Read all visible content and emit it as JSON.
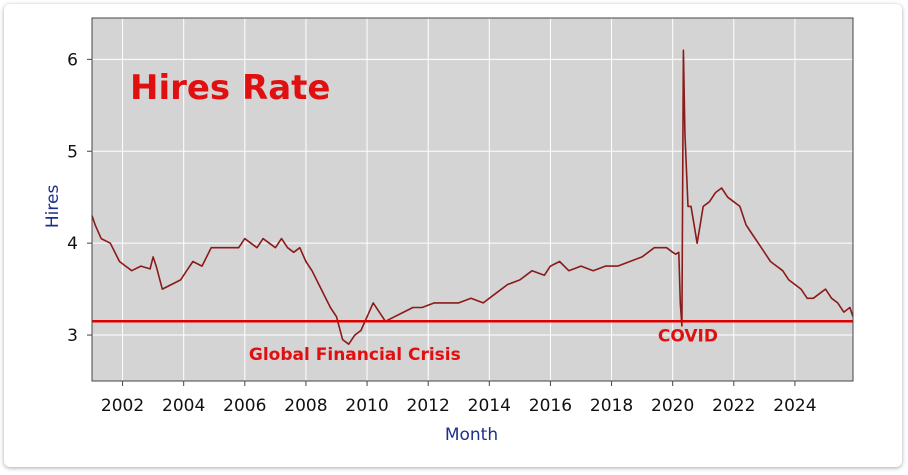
{
  "chart_data": {
    "type": "line",
    "title": "Hires Rate",
    "xlabel": "Month",
    "ylabel": "Hires",
    "xlim": [
      2001.0,
      2025.9
    ],
    "ylim": [
      2.5,
      6.45
    ],
    "x_ticks": [
      2002,
      2004,
      2006,
      2008,
      2010,
      2012,
      2014,
      2016,
      2018,
      2020,
      2022,
      2024
    ],
    "x_tick_labels": [
      "2002",
      "2004",
      "2006",
      "2008",
      "2010",
      "2012",
      "2014",
      "2016",
      "2018",
      "2020",
      "2022",
      "2024"
    ],
    "y_ticks": [
      3,
      4,
      5,
      6
    ],
    "y_tick_labels": [
      "3",
      "4",
      "5",
      "6"
    ],
    "grid": true,
    "colors": {
      "line": "#8b1a1a",
      "reference_line": "#e00000",
      "plot_bg": "#d4d4d4",
      "title": "#e01010",
      "axis_label": "#1d2f8c"
    },
    "reference_line": {
      "y": 3.15
    },
    "annotations": [
      {
        "text": "Global Financial Crisis",
        "x": 2009.6,
        "y": 2.73
      },
      {
        "text": "COVID",
        "x": 2020.5,
        "y": 2.93
      }
    ],
    "series": [
      {
        "x": [
          2001.0,
          2001.1,
          2001.3,
          2001.6,
          2001.9,
          2002.1,
          2002.3,
          2002.6,
          2002.9,
          2003.0,
          2003.1,
          2003.3,
          2003.6,
          2003.9,
          2004.1,
          2004.3,
          2004.6,
          2004.9,
          2005.2,
          2005.5,
          2005.8,
          2006.0,
          2006.2,
          2006.4,
          2006.6,
          2006.8,
          2007.0,
          2007.2,
          2007.4,
          2007.6,
          2007.8,
          2008.0,
          2008.2,
          2008.5,
          2008.8,
          2009.0,
          2009.2,
          2009.4,
          2009.6,
          2009.8,
          2010.0,
          2010.2,
          2010.4,
          2010.6,
          2010.9,
          2011.2,
          2011.5,
          2011.8,
          2012.2,
          2012.6,
          2013.0,
          2013.4,
          2013.8,
          2014.2,
          2014.6,
          2015.0,
          2015.4,
          2015.8,
          2016.0,
          2016.3,
          2016.6,
          2017.0,
          2017.4,
          2017.8,
          2018.2,
          2018.6,
          2019.0,
          2019.4,
          2019.8,
          2020.0,
          2020.1,
          2020.2,
          2020.25,
          2020.3,
          2020.35,
          2020.4,
          2020.5,
          2020.6,
          2020.7,
          2020.8,
          2020.9,
          2021.0,
          2021.2,
          2021.4,
          2021.6,
          2021.8,
          2022.0,
          2022.2,
          2022.4,
          2022.6,
          2022.8,
          2023.0,
          2023.2,
          2023.4,
          2023.6,
          2023.8,
          2024.0,
          2024.2,
          2024.4,
          2024.6,
          2024.8,
          2025.0,
          2025.2,
          2025.4,
          2025.6,
          2025.8,
          2025.9
        ],
        "values": [
          4.3,
          4.2,
          4.05,
          4.0,
          3.8,
          3.75,
          3.7,
          3.75,
          3.72,
          3.85,
          3.75,
          3.5,
          3.55,
          3.6,
          3.7,
          3.8,
          3.75,
          3.95,
          3.95,
          3.95,
          3.95,
          4.05,
          4.0,
          3.95,
          4.05,
          4.0,
          3.95,
          4.05,
          3.95,
          3.9,
          3.95,
          3.8,
          3.7,
          3.5,
          3.3,
          3.2,
          2.95,
          2.9,
          3.0,
          3.05,
          3.2,
          3.35,
          3.25,
          3.15,
          3.2,
          3.25,
          3.3,
          3.3,
          3.35,
          3.35,
          3.35,
          3.4,
          3.35,
          3.45,
          3.55,
          3.6,
          3.7,
          3.65,
          3.75,
          3.8,
          3.7,
          3.75,
          3.7,
          3.75,
          3.75,
          3.8,
          3.85,
          3.95,
          3.95,
          3.9,
          3.88,
          3.9,
          3.35,
          3.1,
          6.1,
          5.2,
          4.4,
          4.4,
          4.2,
          4.0,
          4.2,
          4.4,
          4.45,
          4.55,
          4.6,
          4.5,
          4.45,
          4.4,
          4.2,
          4.1,
          4.0,
          3.9,
          3.8,
          3.75,
          3.7,
          3.6,
          3.55,
          3.5,
          3.4,
          3.4,
          3.45,
          3.5,
          3.4,
          3.35,
          3.25,
          3.3,
          3.2
        ]
      }
    ]
  }
}
